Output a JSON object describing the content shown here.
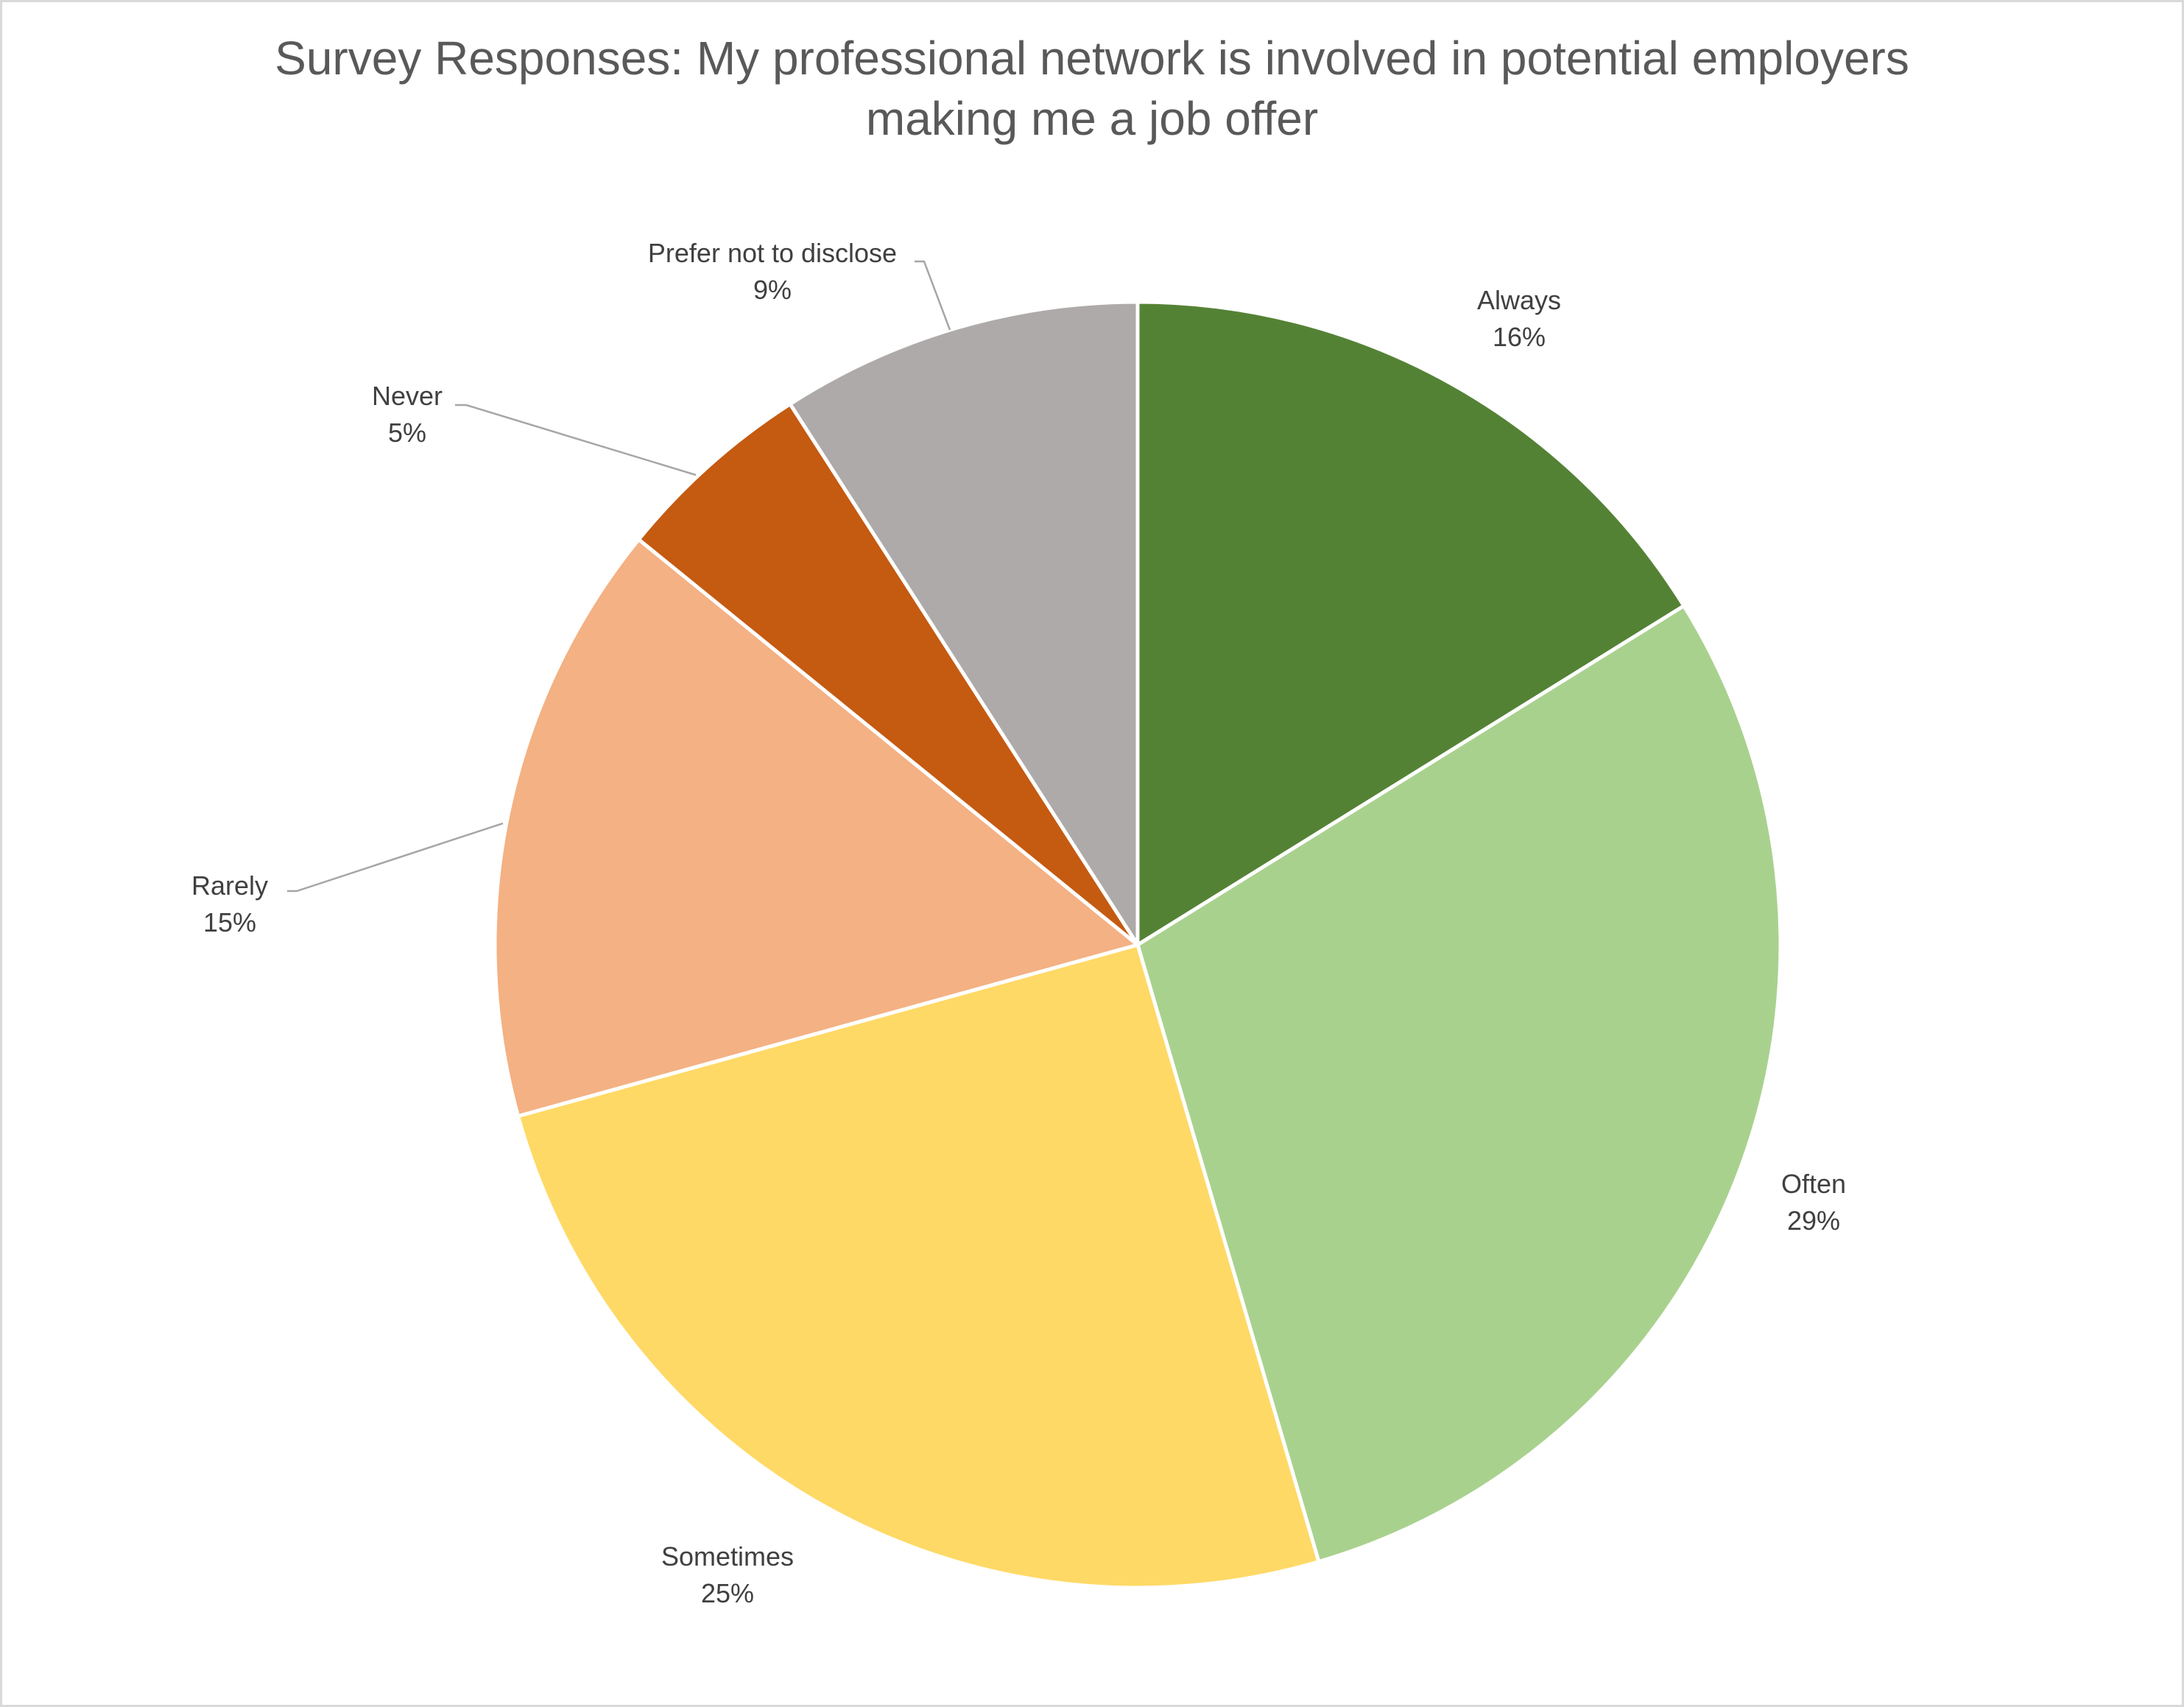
{
  "chart_data": {
    "type": "pie",
    "title_line1": "Survey Responses: My professional network is involved in potential employers",
    "title_line2": "making me a job offer",
    "slices": [
      {
        "label": "Always",
        "value": 16,
        "value_text": "16%",
        "color": "#548235"
      },
      {
        "label": "Often",
        "value": 29,
        "value_text": "29%",
        "color": "#A9D18E"
      },
      {
        "label": "Sometimes",
        "value": 25,
        "value_text": "25%",
        "color": "#FFD966"
      },
      {
        "label": "Rarely",
        "value": 15,
        "value_text": "15%",
        "color": "#F4B183"
      },
      {
        "label": "Never",
        "value": 5,
        "value_text": "5%",
        "color": "#C55A11"
      },
      {
        "label": "Prefer not to disclose",
        "value": 9,
        "value_text": "9%",
        "color": "#AEAAAA"
      }
    ]
  }
}
